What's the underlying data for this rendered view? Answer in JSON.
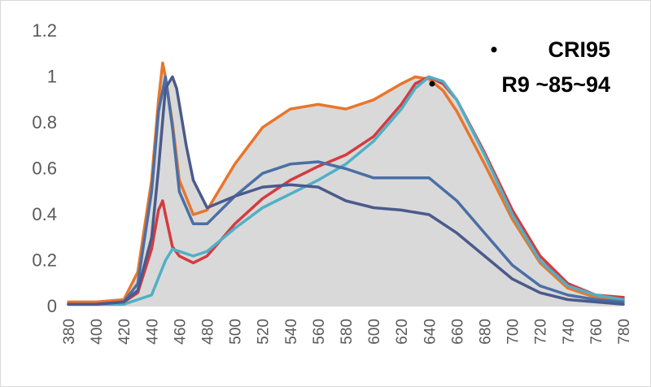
{
  "chart_data": {
    "type": "area",
    "title": "",
    "xlabel": "",
    "ylabel": "",
    "xlim": [
      380,
      780
    ],
    "ylim": [
      0,
      1.2
    ],
    "grid": false,
    "y_ticks": [
      "0",
      "0.2",
      "0.4",
      "0.6",
      "0.8",
      "1",
      "1.2"
    ],
    "x_ticks": [
      "380",
      "400",
      "420",
      "440",
      "460",
      "480",
      "500",
      "520",
      "540",
      "560",
      "580",
      "600",
      "620",
      "640",
      "660",
      "680",
      "700",
      "720",
      "740",
      "760",
      "780"
    ],
    "annotations": [
      "CRI95",
      "R9 ~85~94"
    ],
    "colors": {
      "fill": "#d9d9d9",
      "orange": "#e8762c",
      "red": "#d63a3f",
      "teal": "#4fb0c6",
      "mid_blue": "#4a6fa5",
      "navy": "#4b5a8c",
      "axis_text": "#595959"
    },
    "series": [
      {
        "x": [
          380,
          400,
          420,
          430,
          440,
          445,
          448,
          450,
          455,
          460,
          470,
          480,
          500,
          520,
          540,
          560,
          580,
          600,
          620,
          630,
          640,
          650,
          660,
          680,
          700,
          720,
          740,
          760,
          780
        ],
        "y": [
          0.02,
          0.02,
          0.03,
          0.15,
          0.55,
          0.9,
          1.06,
          1.0,
          0.8,
          0.55,
          0.4,
          0.42,
          0.62,
          0.78,
          0.86,
          0.88,
          0.86,
          0.9,
          0.97,
          1.0,
          0.99,
          0.94,
          0.85,
          0.62,
          0.38,
          0.19,
          0.08,
          0.04,
          0.03
        ]
      },
      {
        "x": [
          380,
          400,
          420,
          430,
          440,
          445,
          448,
          450,
          455,
          460,
          470,
          480,
          500,
          520,
          540,
          560,
          580,
          600,
          620,
          630,
          640,
          650,
          660,
          680,
          700,
          720,
          740,
          760,
          780
        ],
        "y": [
          0.01,
          0.01,
          0.02,
          0.06,
          0.25,
          0.42,
          0.46,
          0.4,
          0.26,
          0.22,
          0.19,
          0.22,
          0.36,
          0.47,
          0.55,
          0.61,
          0.66,
          0.74,
          0.88,
          0.97,
          1.0,
          0.97,
          0.9,
          0.67,
          0.42,
          0.22,
          0.1,
          0.05,
          0.04
        ]
      },
      {
        "x": [
          380,
          400,
          420,
          440,
          450,
          455,
          460,
          470,
          480,
          500,
          520,
          540,
          560,
          580,
          600,
          620,
          630,
          640,
          650,
          660,
          680,
          700,
          720,
          740,
          760,
          780
        ],
        "y": [
          0.01,
          0.01,
          0.01,
          0.05,
          0.2,
          0.25,
          0.24,
          0.22,
          0.24,
          0.34,
          0.43,
          0.49,
          0.55,
          0.62,
          0.72,
          0.86,
          0.95,
          1.0,
          0.98,
          0.9,
          0.66,
          0.4,
          0.2,
          0.09,
          0.05,
          0.03
        ]
      },
      {
        "x": [
          380,
          400,
          420,
          430,
          440,
          445,
          450,
          455,
          460,
          470,
          480,
          500,
          520,
          540,
          560,
          580,
          600,
          620,
          640,
          660,
          680,
          700,
          720,
          740,
          760,
          780
        ],
        "y": [
          0.01,
          0.01,
          0.02,
          0.1,
          0.5,
          0.85,
          1.0,
          0.78,
          0.5,
          0.36,
          0.36,
          0.48,
          0.58,
          0.62,
          0.63,
          0.6,
          0.56,
          0.56,
          0.56,
          0.46,
          0.32,
          0.18,
          0.09,
          0.05,
          0.03,
          0.02
        ]
      },
      {
        "x": [
          380,
          400,
          420,
          430,
          440,
          445,
          450,
          455,
          458,
          460,
          465,
          470,
          480,
          500,
          520,
          540,
          560,
          580,
          600,
          620,
          640,
          660,
          680,
          700,
          720,
          740,
          760,
          780
        ],
        "y": [
          0.01,
          0.01,
          0.02,
          0.07,
          0.3,
          0.6,
          0.95,
          1.0,
          0.95,
          0.88,
          0.7,
          0.55,
          0.43,
          0.48,
          0.52,
          0.53,
          0.52,
          0.46,
          0.43,
          0.42,
          0.4,
          0.32,
          0.22,
          0.12,
          0.06,
          0.03,
          0.02,
          0.01
        ]
      }
    ]
  }
}
